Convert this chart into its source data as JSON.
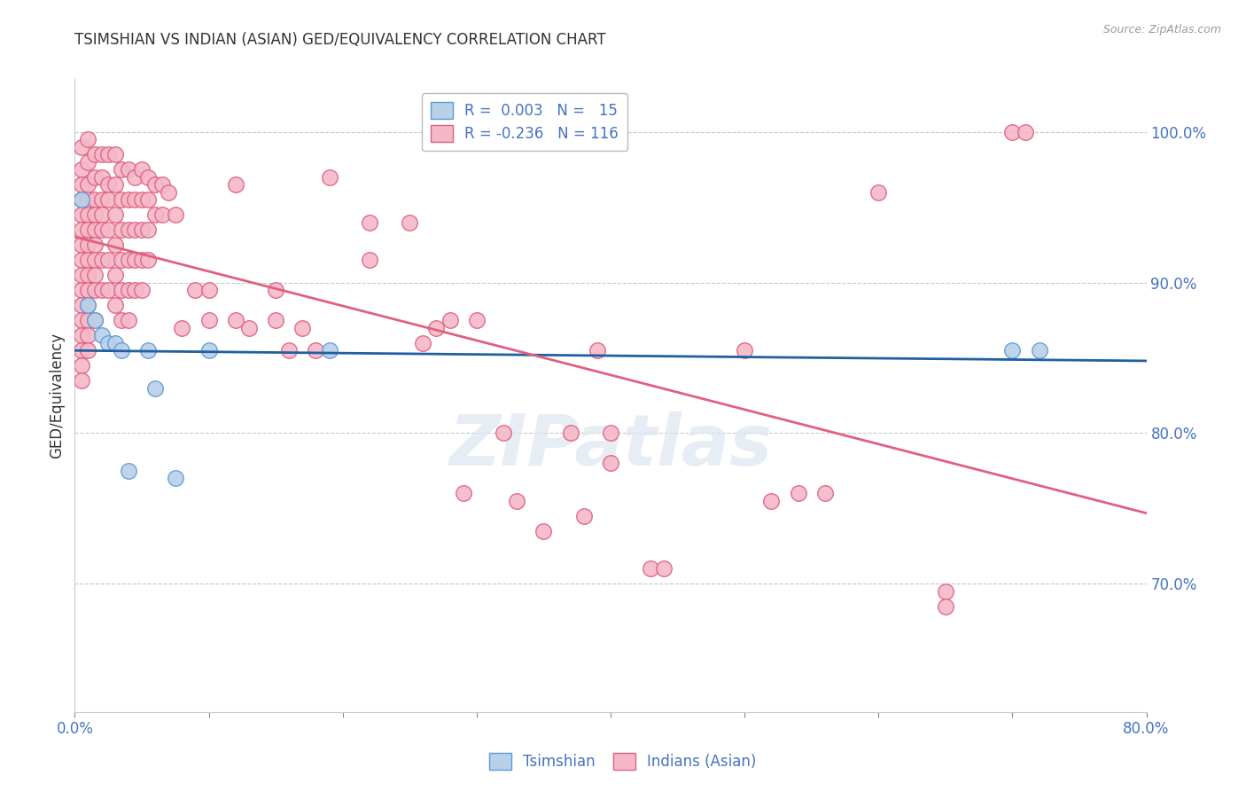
{
  "title": "TSIMSHIAN VS INDIAN (ASIAN) GED/EQUIVALENCY CORRELATION CHART",
  "source": "Source: ZipAtlas.com",
  "ylabel": "GED/Equivalency",
  "x_min": 0.0,
  "x_max": 0.8,
  "y_min": 0.615,
  "y_max": 1.035,
  "x_ticks": [
    0.0,
    0.1,
    0.2,
    0.3,
    0.4,
    0.5,
    0.6,
    0.7,
    0.8
  ],
  "y_tick_positions": [
    0.7,
    0.8,
    0.9,
    1.0
  ],
  "y_tick_labels": [
    "70.0%",
    "80.0%",
    "90.0%",
    "100.0%"
  ],
  "tsimshian_color": "#b8d0e8",
  "tsimshian_edge": "#5b9bd5",
  "indian_color": "#f4b8c8",
  "indian_edge": "#e06080",
  "trend_tsimshian_color": "#2060a0",
  "trend_indian_color": "#e06080",
  "watermark": "ZIPatlas",
  "tsimshian_points": [
    [
      0.005,
      0.955
    ],
    [
      0.01,
      0.885
    ],
    [
      0.015,
      0.875
    ],
    [
      0.02,
      0.865
    ],
    [
      0.025,
      0.86
    ],
    [
      0.03,
      0.86
    ],
    [
      0.035,
      0.855
    ],
    [
      0.04,
      0.775
    ],
    [
      0.055,
      0.855
    ],
    [
      0.06,
      0.83
    ],
    [
      0.075,
      0.77
    ],
    [
      0.1,
      0.855
    ],
    [
      0.19,
      0.855
    ],
    [
      0.7,
      0.855
    ],
    [
      0.72,
      0.855
    ]
  ],
  "indian_points": [
    [
      0.005,
      0.99
    ],
    [
      0.005,
      0.975
    ],
    [
      0.005,
      0.965
    ],
    [
      0.005,
      0.955
    ],
    [
      0.005,
      0.945
    ],
    [
      0.005,
      0.935
    ],
    [
      0.005,
      0.925
    ],
    [
      0.005,
      0.915
    ],
    [
      0.005,
      0.905
    ],
    [
      0.005,
      0.895
    ],
    [
      0.005,
      0.885
    ],
    [
      0.005,
      0.875
    ],
    [
      0.005,
      0.865
    ],
    [
      0.005,
      0.855
    ],
    [
      0.005,
      0.845
    ],
    [
      0.005,
      0.835
    ],
    [
      0.01,
      0.995
    ],
    [
      0.01,
      0.98
    ],
    [
      0.01,
      0.965
    ],
    [
      0.01,
      0.955
    ],
    [
      0.01,
      0.945
    ],
    [
      0.01,
      0.935
    ],
    [
      0.01,
      0.925
    ],
    [
      0.01,
      0.915
    ],
    [
      0.01,
      0.905
    ],
    [
      0.01,
      0.895
    ],
    [
      0.01,
      0.885
    ],
    [
      0.01,
      0.875
    ],
    [
      0.01,
      0.865
    ],
    [
      0.01,
      0.855
    ],
    [
      0.015,
      0.985
    ],
    [
      0.015,
      0.97
    ],
    [
      0.015,
      0.955
    ],
    [
      0.015,
      0.945
    ],
    [
      0.015,
      0.935
    ],
    [
      0.015,
      0.925
    ],
    [
      0.015,
      0.915
    ],
    [
      0.015,
      0.905
    ],
    [
      0.015,
      0.895
    ],
    [
      0.015,
      0.875
    ],
    [
      0.02,
      0.985
    ],
    [
      0.02,
      0.97
    ],
    [
      0.02,
      0.955
    ],
    [
      0.02,
      0.945
    ],
    [
      0.02,
      0.935
    ],
    [
      0.02,
      0.915
    ],
    [
      0.02,
      0.895
    ],
    [
      0.025,
      0.985
    ],
    [
      0.025,
      0.965
    ],
    [
      0.025,
      0.955
    ],
    [
      0.025,
      0.935
    ],
    [
      0.025,
      0.915
    ],
    [
      0.025,
      0.895
    ],
    [
      0.03,
      0.985
    ],
    [
      0.03,
      0.965
    ],
    [
      0.03,
      0.945
    ],
    [
      0.03,
      0.925
    ],
    [
      0.03,
      0.905
    ],
    [
      0.03,
      0.885
    ],
    [
      0.035,
      0.975
    ],
    [
      0.035,
      0.955
    ],
    [
      0.035,
      0.935
    ],
    [
      0.035,
      0.915
    ],
    [
      0.035,
      0.895
    ],
    [
      0.035,
      0.875
    ],
    [
      0.04,
      0.975
    ],
    [
      0.04,
      0.955
    ],
    [
      0.04,
      0.935
    ],
    [
      0.04,
      0.915
    ],
    [
      0.04,
      0.895
    ],
    [
      0.04,
      0.875
    ],
    [
      0.045,
      0.97
    ],
    [
      0.045,
      0.955
    ],
    [
      0.045,
      0.935
    ],
    [
      0.045,
      0.915
    ],
    [
      0.045,
      0.895
    ],
    [
      0.05,
      0.975
    ],
    [
      0.05,
      0.955
    ],
    [
      0.05,
      0.935
    ],
    [
      0.05,
      0.915
    ],
    [
      0.05,
      0.895
    ],
    [
      0.055,
      0.97
    ],
    [
      0.055,
      0.955
    ],
    [
      0.055,
      0.935
    ],
    [
      0.055,
      0.915
    ],
    [
      0.06,
      0.965
    ],
    [
      0.06,
      0.945
    ],
    [
      0.065,
      0.965
    ],
    [
      0.065,
      0.945
    ],
    [
      0.07,
      0.96
    ],
    [
      0.075,
      0.945
    ],
    [
      0.08,
      0.87
    ],
    [
      0.09,
      0.895
    ],
    [
      0.1,
      0.895
    ],
    [
      0.1,
      0.875
    ],
    [
      0.12,
      0.965
    ],
    [
      0.12,
      0.875
    ],
    [
      0.13,
      0.87
    ],
    [
      0.15,
      0.895
    ],
    [
      0.15,
      0.875
    ],
    [
      0.16,
      0.855
    ],
    [
      0.17,
      0.87
    ],
    [
      0.18,
      0.855
    ],
    [
      0.19,
      0.97
    ],
    [
      0.22,
      0.94
    ],
    [
      0.22,
      0.915
    ],
    [
      0.25,
      0.94
    ],
    [
      0.26,
      0.86
    ],
    [
      0.27,
      0.87
    ],
    [
      0.28,
      0.875
    ],
    [
      0.29,
      0.76
    ],
    [
      0.3,
      0.875
    ],
    [
      0.32,
      0.8
    ],
    [
      0.33,
      0.755
    ],
    [
      0.35,
      0.735
    ],
    [
      0.37,
      0.8
    ],
    [
      0.38,
      0.745
    ],
    [
      0.39,
      0.855
    ],
    [
      0.4,
      0.8
    ],
    [
      0.4,
      0.78
    ],
    [
      0.43,
      0.71
    ],
    [
      0.44,
      0.71
    ],
    [
      0.5,
      0.855
    ],
    [
      0.52,
      0.755
    ],
    [
      0.54,
      0.76
    ],
    [
      0.56,
      0.76
    ],
    [
      0.6,
      0.96
    ],
    [
      0.65,
      0.695
    ],
    [
      0.65,
      0.685
    ],
    [
      0.7,
      1.0
    ],
    [
      0.71,
      1.0
    ]
  ]
}
